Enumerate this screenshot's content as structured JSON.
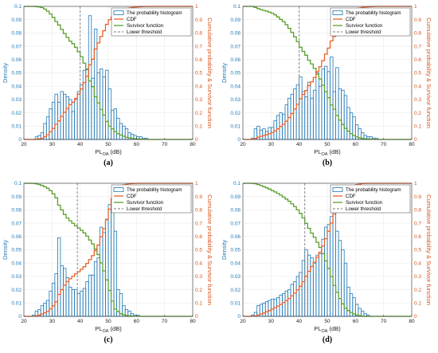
{
  "chart_data": [
    {
      "type": "bar",
      "caption": "(a)",
      "xlabel": "PL",
      "xlabel_sub": "OA",
      "xlabel_unit": " (dB)",
      "ylabel_left": "Density",
      "ylabel_right": "Cumulative probability & Survivor function",
      "xlim": [
        20,
        80
      ],
      "ylim_left": [
        0,
        0.1
      ],
      "ylim_right": [
        0,
        1
      ],
      "xticks": [
        20,
        30,
        40,
        50,
        60,
        70,
        80
      ],
      "yticks_left": [
        0,
        0.01,
        0.02,
        0.03,
        0.04,
        0.05,
        0.06,
        0.07,
        0.08,
        0.09,
        0.1
      ],
      "yticks_right": [
        0,
        0.1,
        0.2,
        0.3,
        0.4,
        0.5,
        0.6,
        0.7,
        0.8,
        0.9,
        1
      ],
      "lower_threshold": 40,
      "legend": [
        "The probability histogram",
        "CDF",
        "Survivor function",
        "Lower threshold"
      ],
      "bin_start": 24,
      "bin_width": 1,
      "density": [
        0.002,
        0.003,
        0.005,
        0.012,
        0.017,
        0.023,
        0.028,
        0.034,
        0.028,
        0.036,
        0.034,
        0.032,
        0.03,
        0.021,
        0.03,
        0.036,
        0.041,
        0.052,
        0.053,
        0.093,
        0.046,
        0.083,
        0.05,
        0.053,
        0.047,
        0.052,
        0.038,
        0.022,
        0.023,
        0.016,
        0.012,
        0.01,
        0.008,
        0.005,
        0.004,
        0.003,
        0.002,
        0.002,
        0.001,
        0.001
      ]
    },
    {
      "type": "bar",
      "caption": "(b)",
      "xlabel": "PL",
      "xlabel_sub": "OA",
      "xlabel_unit": " (dB)",
      "ylabel_left": "Density",
      "ylabel_right": "Cumulative probability & Survivor function",
      "xlim": [
        20,
        80
      ],
      "ylim_left": [
        0,
        0.1
      ],
      "ylim_right": [
        0,
        1
      ],
      "xticks": [
        20,
        30,
        40,
        50,
        60,
        70,
        80
      ],
      "yticks_left": [
        0,
        0.01,
        0.02,
        0.03,
        0.04,
        0.05,
        0.06,
        0.07,
        0.08,
        0.09,
        0.1
      ],
      "yticks_right": [
        0,
        0.1,
        0.2,
        0.3,
        0.4,
        0.5,
        0.6,
        0.7,
        0.8,
        0.9,
        1
      ],
      "lower_threshold": 40,
      "legend": [
        "The probability histogram",
        "CDF",
        "Survivor function",
        "Lower threshold"
      ],
      "bin_start": 23,
      "bin_width": 1,
      "density": [
        0.001,
        0.008,
        0.01,
        0.007,
        0.008,
        0.006,
        0.009,
        0.009,
        0.014,
        0.018,
        0.02,
        0.019,
        0.026,
        0.031,
        0.034,
        0.038,
        0.041,
        0.047,
        0.036,
        0.032,
        0.043,
        0.031,
        0.037,
        0.05,
        0.04,
        0.053,
        0.055,
        0.051,
        0.062,
        0.036,
        0.054,
        0.038,
        0.037,
        0.033,
        0.024,
        0.02,
        0.017,
        0.011,
        0.008,
        0.005,
        0.003,
        0.002,
        0.002,
        0.001,
        0.001
      ]
    },
    {
      "type": "bar",
      "caption": "(c)",
      "xlabel": "PL",
      "xlabel_sub": "OA",
      "xlabel_unit": " (dB)",
      "ylabel_left": "Density",
      "ylabel_right": "Cumulative probability & Survivor function",
      "xlim": [
        20,
        80
      ],
      "ylim_left": [
        0,
        0.1
      ],
      "ylim_right": [
        0,
        1
      ],
      "xticks": [
        20,
        30,
        40,
        50,
        60,
        70,
        80
      ],
      "yticks_left": [
        0,
        0.01,
        0.02,
        0.03,
        0.04,
        0.05,
        0.06,
        0.07,
        0.08,
        0.09,
        0.1
      ],
      "yticks_right": [
        0,
        0.1,
        0.2,
        0.3,
        0.4,
        0.5,
        0.6,
        0.7,
        0.8,
        0.9,
        1
      ],
      "lower_threshold": 39,
      "legend": [
        "The probability histogram",
        "CDF",
        "Survivor function",
        "Lower threshold"
      ],
      "bin_start": 23,
      "bin_width": 1,
      "density": [
        0.001,
        0.004,
        0.005,
        0.008,
        0.01,
        0.012,
        0.019,
        0.025,
        0.032,
        0.059,
        0.038,
        0.036,
        0.029,
        0.022,
        0.02,
        0.02,
        0.017,
        0.019,
        0.021,
        0.026,
        0.031,
        0.031,
        0.041,
        0.044,
        0.067,
        0.063,
        0.073,
        0.084,
        0.085,
        0.064,
        0.02,
        0.017,
        0.008,
        0.005,
        0.004,
        0.002,
        0.001,
        0.001
      ]
    },
    {
      "type": "bar",
      "caption": "(d)",
      "xlabel": "PL",
      "xlabel_sub": "OA",
      "xlabel_unit": " (dB)",
      "ylabel_left": "Density",
      "ylabel_right": "Cumulative probability & Survivor function",
      "xlim": [
        20,
        80
      ],
      "ylim_left": [
        0,
        0.1
      ],
      "ylim_right": [
        0,
        1
      ],
      "xticks": [
        20,
        30,
        40,
        50,
        60,
        70,
        80
      ],
      "yticks_left": [
        0,
        0.01,
        0.02,
        0.03,
        0.04,
        0.05,
        0.06,
        0.07,
        0.08,
        0.09,
        0.1
      ],
      "yticks_right": [
        0,
        0.1,
        0.2,
        0.3,
        0.4,
        0.5,
        0.6,
        0.7,
        0.8,
        0.9,
        1
      ],
      "lower_threshold": 42,
      "legend": [
        "The probability histogram",
        "CDF",
        "Survivor function",
        "Lower threshold"
      ],
      "bin_start": 23,
      "bin_width": 1,
      "density": [
        0.001,
        0.003,
        0.008,
        0.009,
        0.01,
        0.011,
        0.012,
        0.013,
        0.013,
        0.014,
        0.016,
        0.017,
        0.019,
        0.02,
        0.024,
        0.026,
        0.03,
        0.033,
        0.042,
        0.05,
        0.046,
        0.044,
        0.04,
        0.046,
        0.047,
        0.058,
        0.067,
        0.069,
        0.075,
        0.083,
        0.064,
        0.057,
        0.05,
        0.04,
        0.022,
        0.017,
        0.014,
        0.009,
        0.006,
        0.004,
        0.002,
        0.001
      ]
    }
  ]
}
